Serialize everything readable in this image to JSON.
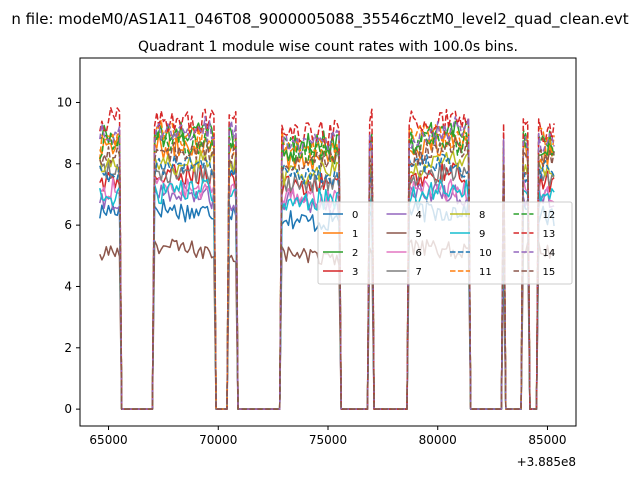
{
  "suptitle": "n file: modeM0/AS1A11_046T08_9000005088_35546cztM0_level2_quad_clean.evt",
  "chart_data": {
    "type": "line",
    "title": "Quadrant 1 module wise count rates with 100.0s bins.",
    "xlabel": "",
    "ylabel": "",
    "x_offset_label": "+3.885e8",
    "xlim": [
      63700,
      86300
    ],
    "ylim": [
      -0.55,
      11.45
    ],
    "xticks": [
      65000,
      70000,
      75000,
      80000,
      85000
    ],
    "xtick_labels": [
      "65000",
      "70000",
      "75000",
      "80000",
      "85000"
    ],
    "yticks": [
      0,
      2,
      4,
      6,
      8,
      10
    ],
    "ytick_labels": [
      "0",
      "2",
      "4",
      "6",
      "8",
      "10"
    ],
    "bin_size_s": 100,
    "x_start": 64600,
    "x_end": 85300,
    "gaps": [
      [
        65600,
        67000
      ],
      [
        69900,
        70400
      ],
      [
        70900,
        72800
      ],
      [
        75600,
        76800
      ],
      [
        77100,
        78600
      ],
      [
        81500,
        82950
      ],
      [
        83100,
        83800
      ],
      [
        84200,
        84500
      ]
    ],
    "gap_value": 0,
    "legend": {
      "position": "center-right",
      "columns": 4
    },
    "series": [
      {
        "name": "0",
        "color": "#1f77b4",
        "dash": "solid",
        "level": 6.4,
        "amp": 0.5
      },
      {
        "name": "1",
        "color": "#ff7f0e",
        "dash": "solid",
        "level": 8.5,
        "amp": 0.6
      },
      {
        "name": "2",
        "color": "#2ca02c",
        "dash": "solid",
        "level": 8.8,
        "amp": 0.6
      },
      {
        "name": "3",
        "color": "#d62728",
        "dash": "solid",
        "level": 7.4,
        "amp": 0.5
      },
      {
        "name": "4",
        "color": "#9467bd",
        "dash": "solid",
        "level": 6.8,
        "amp": 0.5
      },
      {
        "name": "5",
        "color": "#8c564b",
        "dash": "solid",
        "level": 5.1,
        "amp": 0.4
      },
      {
        "name": "6",
        "color": "#e377c2",
        "dash": "solid",
        "level": 7.1,
        "amp": 0.5
      },
      {
        "name": "7",
        "color": "#7f7f7f",
        "dash": "solid",
        "level": 7.6,
        "amp": 0.5
      },
      {
        "name": "8",
        "color": "#bcbd22",
        "dash": "solid",
        "level": 7.9,
        "amp": 0.5
      },
      {
        "name": "9",
        "color": "#17becf",
        "dash": "solid",
        "level": 6.9,
        "amp": 0.5
      },
      {
        "name": "10",
        "color": "#1f77b4",
        "dash": "dashed",
        "level": 7.7,
        "amp": 0.5
      },
      {
        "name": "11",
        "color": "#ff7f0e",
        "dash": "dashed",
        "level": 8.7,
        "amp": 0.6
      },
      {
        "name": "12",
        "color": "#2ca02c",
        "dash": "dashed",
        "level": 8.6,
        "amp": 0.6
      },
      {
        "name": "13",
        "color": "#d62728",
        "dash": "dashed",
        "level": 9.3,
        "amp": 0.6
      },
      {
        "name": "14",
        "color": "#9467bd",
        "dash": "dashed",
        "level": 8.9,
        "amp": 0.6
      },
      {
        "name": "15",
        "color": "#8c564b",
        "dash": "dashed",
        "level": 8.2,
        "amp": 0.5
      }
    ]
  }
}
